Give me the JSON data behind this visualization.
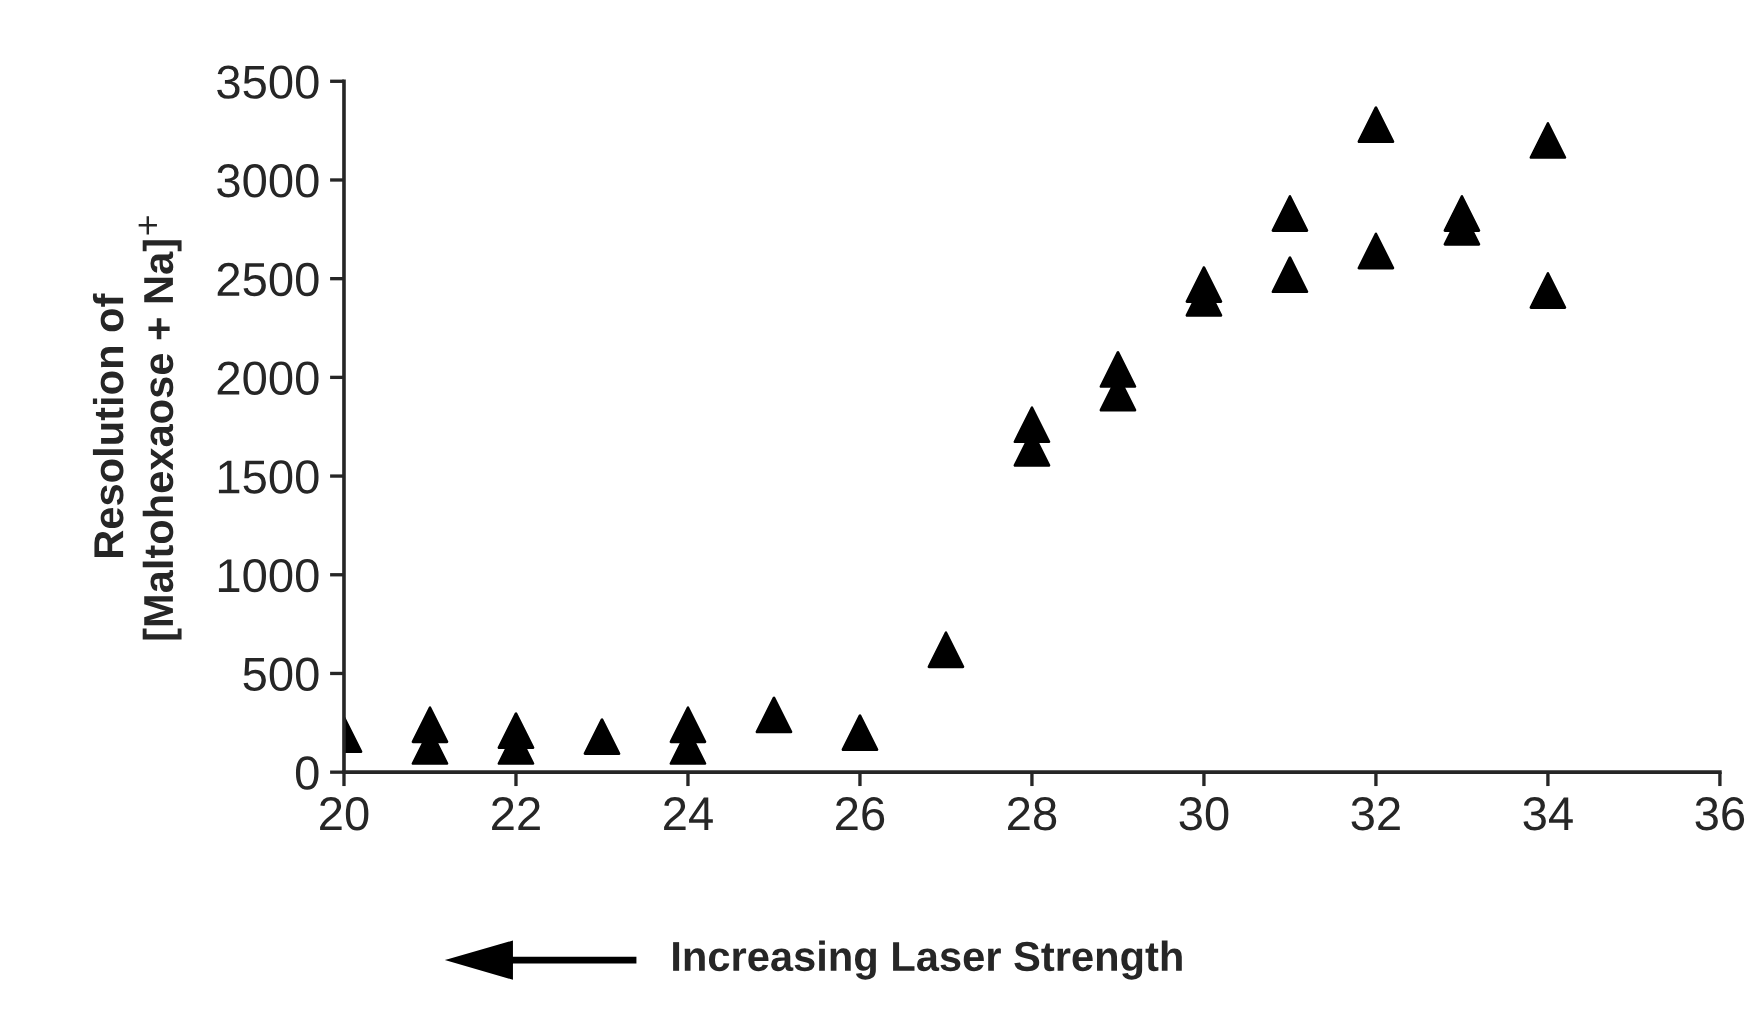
{
  "chart_data": {
    "type": "scatter",
    "xlabel": "Increasing Laser Strength",
    "ylabel": "Resolution of\n[Maltohexaose + Na]$^{+}$",
    "series": [
      {
        "color": "#000000",
        "x": [
          20,
          21,
          21,
          22,
          22,
          23,
          24,
          24,
          25,
          26,
          27,
          28,
          28,
          29,
          29,
          30,
          30,
          31,
          31,
          32,
          32,
          33,
          33,
          34,
          34
        ],
        "values": [
          190,
          240,
          130,
          210,
          130,
          180,
          240,
          130,
          290,
          200,
          620,
          1760,
          1640,
          2040,
          1920,
          2470,
          2400,
          2830,
          2520,
          3280,
          2640,
          2830,
          2760,
          3200,
          2440
        ]
      }
    ],
    "marker": "triangle",
    "grid": false,
    "legend": false,
    "xlim": [
      20,
      36
    ],
    "xticks": [
      20,
      22,
      24,
      26,
      28,
      30,
      32,
      34,
      36
    ],
    "ylim": [
      0,
      3500
    ],
    "yticks": [
      0,
      500,
      1000,
      1500,
      2000,
      2500,
      3000,
      3500
    ]
  }
}
